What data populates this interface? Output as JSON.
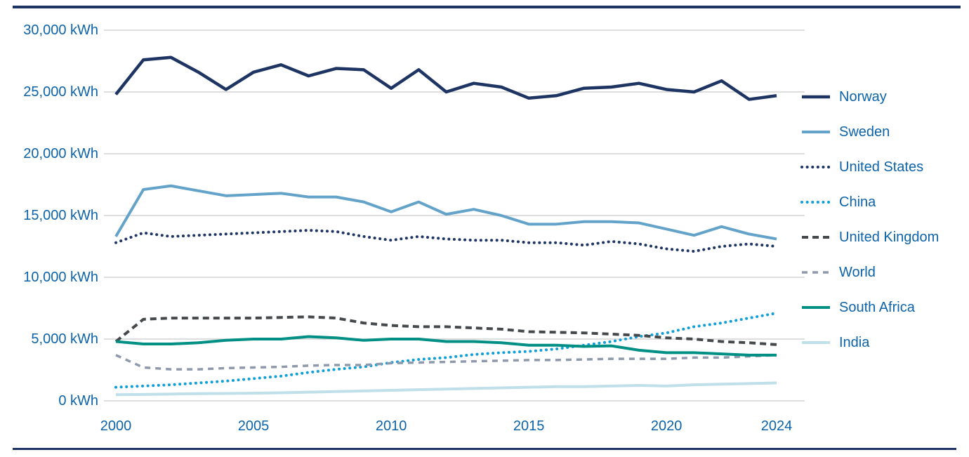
{
  "page": {
    "background_color": "#ffffff",
    "top_border_color": "#1e3564",
    "bottom_border_color": "#1e3564",
    "text_color": "#0c63aa",
    "gridline_color": "#c9c9c9"
  },
  "chart_data": {
    "type": "line",
    "title": "",
    "xlabel": "",
    "ylabel": "",
    "unit": "kWh",
    "grid": "horizontal",
    "legend_position": "right",
    "xlim": [
      2000,
      2024
    ],
    "ylim": [
      0,
      30000
    ],
    "x": [
      2000,
      2001,
      2002,
      2003,
      2004,
      2005,
      2006,
      2007,
      2008,
      2009,
      2010,
      2011,
      2012,
      2013,
      2014,
      2015,
      2016,
      2017,
      2018,
      2019,
      2020,
      2021,
      2022,
      2023,
      2024
    ],
    "x_ticks": [
      {
        "label": "2000",
        "value": 2000
      },
      {
        "label": "2005",
        "value": 2005
      },
      {
        "label": "2010",
        "value": 2010
      },
      {
        "label": "2015",
        "value": 2015
      },
      {
        "label": "2020",
        "value": 2020
      },
      {
        "label": "2024",
        "value": 2024
      }
    ],
    "y_ticks": [
      {
        "label": "30,000 kWh",
        "value": 30000
      },
      {
        "label": "25,000 kWh",
        "value": 25000
      },
      {
        "label": "20,000 kWh",
        "value": 20000
      },
      {
        "label": "15,000 kWh",
        "value": 15000
      },
      {
        "label": "10,000 kWh",
        "value": 10000
      },
      {
        "label": "5,000 kWh",
        "value": 5000
      },
      {
        "label": "0 kWh",
        "value": 0
      }
    ],
    "series": [
      {
        "name": "Norway",
        "color": "#1e3564",
        "style": "solid",
        "width": 4.5,
        "values": [
          24800,
          27600,
          27800,
          26600,
          25200,
          26600,
          27200,
          26300,
          26900,
          26800,
          25300,
          26800,
          25000,
          25700,
          25400,
          24500,
          24700,
          25300,
          25400,
          25700,
          25200,
          25000,
          25900,
          24400,
          24700
        ]
      },
      {
        "name": "Sweden",
        "color": "#63a2c9",
        "style": "solid",
        "width": 4,
        "values": [
          13300,
          17100,
          17400,
          17000,
          16600,
          16700,
          16800,
          16500,
          16500,
          16100,
          15300,
          16100,
          15100,
          15500,
          15000,
          14300,
          14300,
          14500,
          14500,
          14400,
          13900,
          13400,
          14100,
          13500,
          13100
        ]
      },
      {
        "name": "United States",
        "color": "#1e3564",
        "style": "dotted",
        "width": 4,
        "values": [
          12800,
          13600,
          13300,
          13400,
          13500,
          13600,
          13700,
          13800,
          13700,
          13300,
          13000,
          13300,
          13100,
          13000,
          13000,
          12800,
          12800,
          12600,
          12900,
          12700,
          12300,
          12100,
          12500,
          12700,
          12500
        ]
      },
      {
        "name": "China",
        "color": "#109fd7",
        "style": "dotted",
        "width": 4,
        "values": [
          1100,
          1200,
          1300,
          1450,
          1600,
          1800,
          2000,
          2300,
          2550,
          2750,
          3100,
          3350,
          3500,
          3750,
          3900,
          4000,
          4200,
          4500,
          4800,
          5200,
          5500,
          6000,
          6300,
          6700,
          7100
        ]
      },
      {
        "name": "United Kingdom",
        "color": "#45494c",
        "style": "dashed",
        "width": 4,
        "values": [
          4800,
          6600,
          6700,
          6700,
          6700,
          6700,
          6750,
          6800,
          6700,
          6300,
          6100,
          6000,
          6000,
          5900,
          5800,
          5600,
          5550,
          5500,
          5400,
          5300,
          5100,
          5000,
          4800,
          4700,
          4550
        ]
      },
      {
        "name": "World",
        "color": "#8e9aab",
        "style": "dashed-small",
        "width": 3.5,
        "values": [
          3700,
          2700,
          2550,
          2550,
          2650,
          2700,
          2750,
          2850,
          2900,
          2900,
          3050,
          3100,
          3150,
          3200,
          3250,
          3300,
          3300,
          3350,
          3400,
          3400,
          3400,
          3500,
          3500,
          3600,
          3700
        ]
      },
      {
        "name": "South Africa",
        "color": "#008f85",
        "style": "solid",
        "width": 4,
        "values": [
          4800,
          4600,
          4600,
          4700,
          4900,
          5000,
          5000,
          5200,
          5100,
          4900,
          5000,
          5000,
          4800,
          4800,
          4700,
          4500,
          4500,
          4400,
          4450,
          4100,
          3900,
          3900,
          3800,
          3700,
          3700
        ]
      },
      {
        "name": "India",
        "color": "#bfdfe9",
        "style": "solid",
        "width": 4,
        "values": [
          500,
          520,
          550,
          580,
          600,
          620,
          650,
          700,
          750,
          800,
          850,
          900,
          950,
          1000,
          1050,
          1100,
          1150,
          1150,
          1200,
          1250,
          1200,
          1300,
          1350,
          1400,
          1450
        ]
      }
    ]
  }
}
